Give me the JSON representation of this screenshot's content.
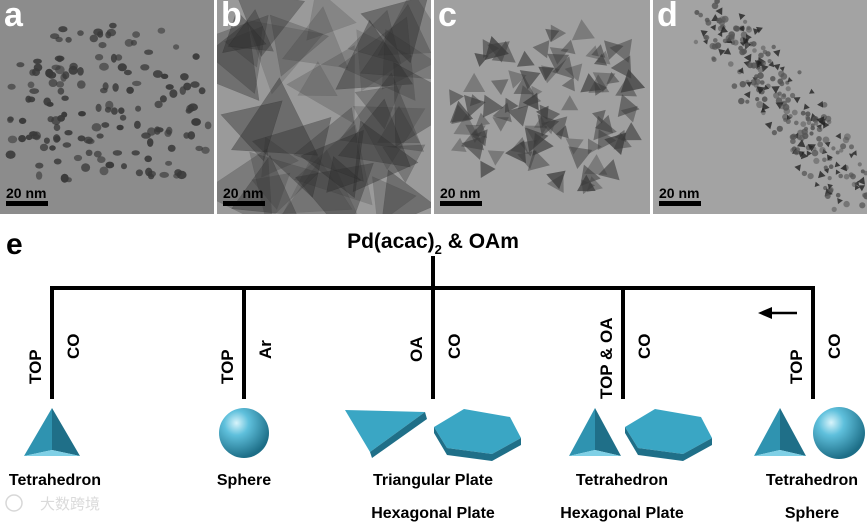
{
  "panels": [
    {
      "label": "a",
      "scale": "20 nm",
      "shape": "sphere"
    },
    {
      "label": "b",
      "scale": "20 nm",
      "shape": "plate"
    },
    {
      "label": "c",
      "scale": "20 nm",
      "shape": "plate-small"
    },
    {
      "label": "d",
      "scale": "20 nm",
      "shape": "mixed"
    }
  ],
  "panel_e_label": "e",
  "precursor": {
    "main": "Pd(acac)",
    "sub": "2",
    "rest": " & OAm"
  },
  "branches": [
    {
      "left": "TOP",
      "right": "CO",
      "products": [
        "Tetrahedron"
      ]
    },
    {
      "left": "TOP",
      "right": "Ar",
      "products": [
        "Sphere"
      ]
    },
    {
      "left": "OA",
      "right": "CO",
      "products": [
        "Triangular Plate",
        "Hexagonal Plate"
      ]
    },
    {
      "left": "TOP & OA",
      "right": "CO",
      "products": [
        "Tetrahedron",
        "Hexagonal Plate"
      ]
    },
    {
      "left": "TOP",
      "right": "CO",
      "products": [
        "Tetrahedron",
        "Sphere"
      ]
    }
  ],
  "watermark": "大数跨境",
  "colors": {
    "shape": "#3aa6c4",
    "shape_dark": "#1f6f88",
    "shape_light": "#7fd0e6"
  }
}
